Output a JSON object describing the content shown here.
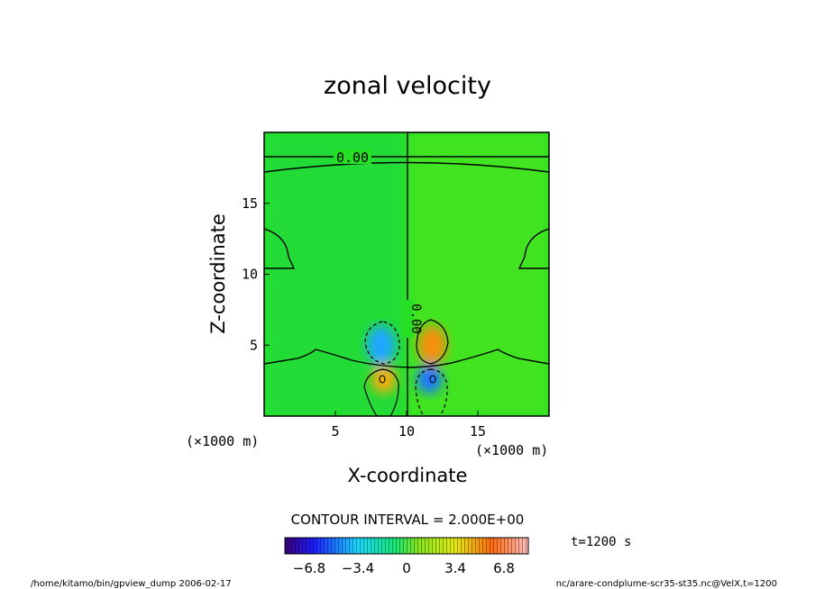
{
  "chart_data": {
    "type": "heatmap",
    "title": "zonal velocity",
    "xlabel": "X-coordinate",
    "ylabel": "Z-coordinate",
    "x_unit": "(×1000 m)",
    "z_unit": "(×1000 m)",
    "xlim": [
      0,
      20
    ],
    "zlim": [
      0,
      20
    ],
    "x_ticks": [
      5,
      10,
      15
    ],
    "z_ticks": [
      5,
      10,
      15
    ],
    "contour_interval_text": "CONTOUR INTERVAL = 2.000E+00",
    "contour_label_horizontal": "0.00",
    "contour_label_vertical": "0.00",
    "time_label": "t=1200 s",
    "colorbar": {
      "min": -8.5,
      "max": 8.5,
      "ticks": [
        -6.8,
        -3.4,
        0,
        3.4,
        6.8
      ],
      "tick_labels": [
        "−6.8",
        "−3.4",
        "0",
        "3.4",
        "6.8"
      ]
    },
    "cells": [
      {
        "x": 8.2,
        "z": 5.0,
        "u": -4.2,
        "rx": 1.0,
        "rz": 1.4
      },
      {
        "x": 11.8,
        "z": 5.0,
        "u": 5.2,
        "rx": 1.0,
        "rz": 1.4
      },
      {
        "x": 8.4,
        "z": 2.6,
        "u": 4.6,
        "rx": 0.9,
        "rz": 1.0
      },
      {
        "x": 11.6,
        "z": 2.6,
        "u": -5.0,
        "rx": 0.9,
        "rz": 1.0
      }
    ],
    "background": {
      "left_value": -1.2,
      "right_value": 0.8,
      "top_value": -0.2
    }
  },
  "footer": {
    "left": "/home/kitamo/bin/gpview_dump  2006-02-17",
    "right": "nc/arare-condplume-scr35-st35.nc@VelX,t=1200"
  }
}
